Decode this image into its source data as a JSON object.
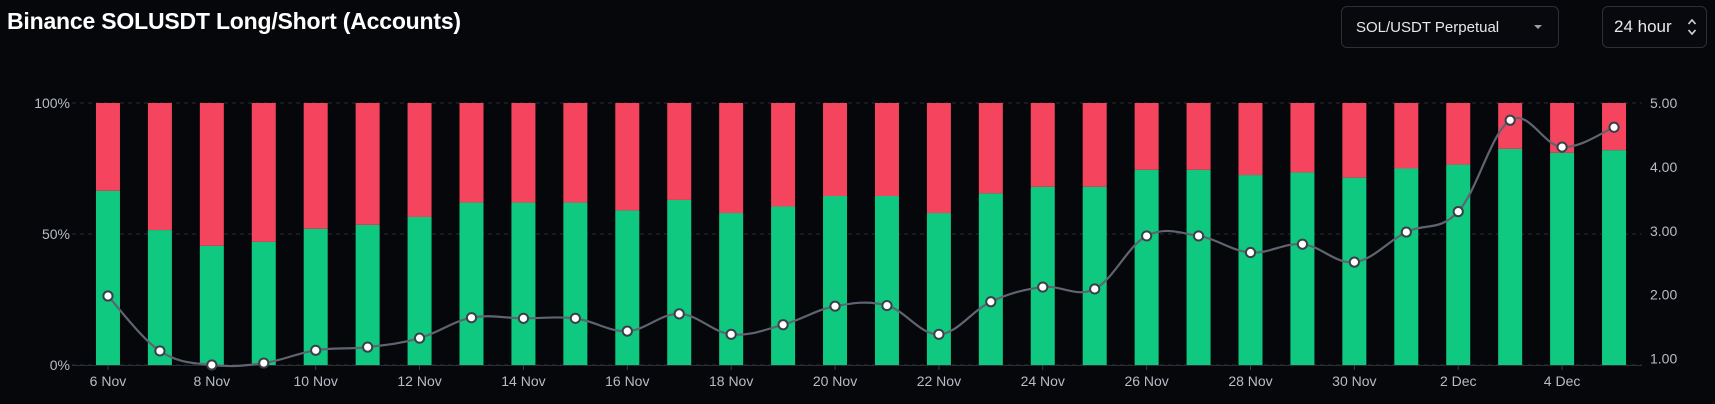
{
  "header": {
    "title": "Binance SOLUSDT Long/Short (Accounts)",
    "market_select": "SOL/USDT Perpetual",
    "period_select": "24 hour"
  },
  "icons": {
    "market_select_icon": "chevron-down-icon",
    "period_select_icon": "updown-chevron-icon"
  },
  "colors": {
    "long": "#10c981",
    "short": "#f5455e",
    "ratio_line": "#5f6470",
    "background": "#05070b"
  },
  "chart_data": {
    "type": "bar",
    "stacked": true,
    "categories": [
      "6 Nov",
      "7 Nov",
      "8 Nov",
      "9 Nov",
      "10 Nov",
      "11 Nov",
      "12 Nov",
      "13 Nov",
      "14 Nov",
      "15 Nov",
      "16 Nov",
      "17 Nov",
      "18 Nov",
      "19 Nov",
      "20 Nov",
      "21 Nov",
      "22 Nov",
      "23 Nov",
      "24 Nov",
      "25 Nov",
      "26 Nov",
      "27 Nov",
      "28 Nov",
      "29 Nov",
      "30 Nov",
      "1 Dec",
      "2 Dec",
      "3 Dec",
      "4 Dec",
      "5 Dec"
    ],
    "x_tick_labels": [
      "6 Nov",
      "8 Nov",
      "10 Nov",
      "12 Nov",
      "14 Nov",
      "16 Nov",
      "18 Nov",
      "20 Nov",
      "22 Nov",
      "24 Nov",
      "26 Nov",
      "28 Nov",
      "30 Nov",
      "2 Dec",
      "4 Dec"
    ],
    "series": [
      {
        "values": [
          66.5,
          51.5,
          45.5,
          47.0,
          52.0,
          53.5,
          56.5,
          62.0,
          62.0,
          62.0,
          59.0,
          63.0,
          58.0,
          60.5,
          64.5,
          64.5,
          58.0,
          65.5,
          68.0,
          68.0,
          74.5,
          74.5,
          72.5,
          73.5,
          71.5,
          75.0,
          76.5,
          82.5,
          81.0,
          82.0
        ]
      },
      {
        "values": [
          33.5,
          48.5,
          54.5,
          53.0,
          48.0,
          46.5,
          43.5,
          38.0,
          38.0,
          38.0,
          41.0,
          37.0,
          42.0,
          39.5,
          35.5,
          35.5,
          42.0,
          34.5,
          32.0,
          32.0,
          25.5,
          25.5,
          27.5,
          26.5,
          28.5,
          25.0,
          23.5,
          17.5,
          19.0,
          18.0
        ]
      }
    ],
    "ratio_line": {
      "axis": "right",
      "values": [
        1.98,
        1.12,
        0.9,
        0.93,
        1.13,
        1.18,
        1.32,
        1.64,
        1.63,
        1.63,
        1.43,
        1.7,
        1.38,
        1.53,
        1.82,
        1.83,
        1.38,
        1.89,
        2.12,
        2.09,
        2.92,
        2.92,
        2.66,
        2.79,
        2.51,
        2.98,
        3.3,
        4.73,
        4.31,
        4.62
      ]
    },
    "y_left": {
      "ticks": [
        "0%",
        "50%",
        "100%"
      ],
      "ylim": [
        0,
        100
      ]
    },
    "y_right": {
      "ticks": [
        "1.00",
        "2.00",
        "3.00",
        "4.00",
        "5.00"
      ],
      "ylim": [
        0.9,
        5.0
      ]
    }
  }
}
